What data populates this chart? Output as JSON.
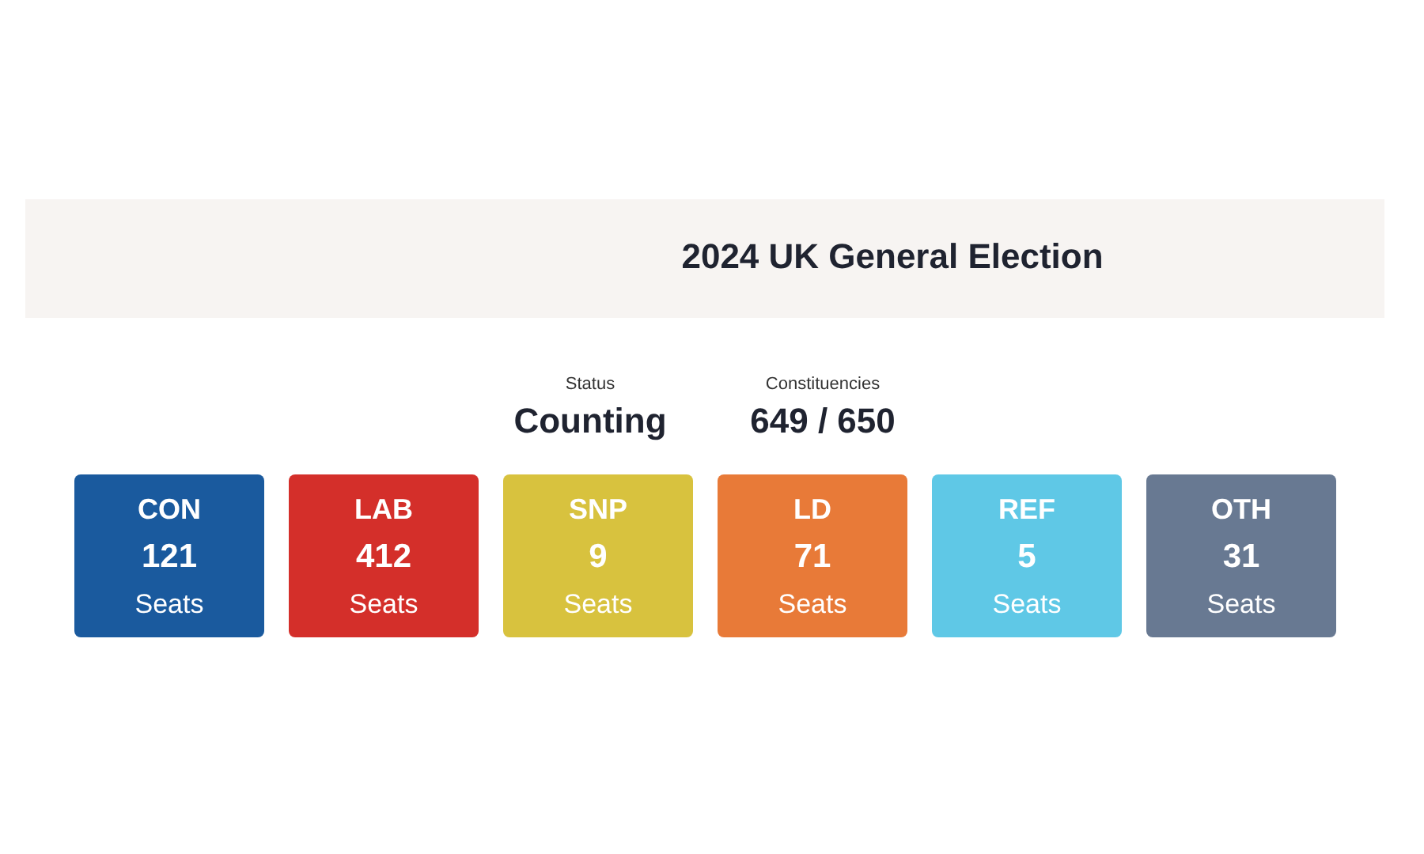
{
  "chart_data": {
    "type": "other",
    "title": "2024 UK General Election",
    "ylabel": "Seats",
    "annotations": [
      "Status",
      "Counting",
      "Constituencies",
      "649 / 650"
    ],
    "categories": [
      "CON",
      "LAB",
      "SNP",
      "LD",
      "REF",
      "OTH"
    ],
    "values": [
      121,
      412,
      9,
      71,
      5,
      31
    ],
    "data_labels": true,
    "colors": [
      "#1a5a9e",
      "#d42f2a",
      "#d8c23e",
      "#e87a38",
      "#5fc8e6",
      "#687992"
    ]
  }
}
